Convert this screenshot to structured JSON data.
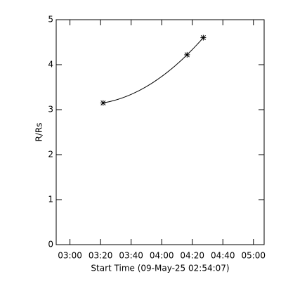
{
  "chart_data": {
    "type": "line",
    "xlabel": "Start Time (09-May-25 02:54:07)",
    "ylabel": "R/Rs",
    "x": [
      201.7,
      256.6,
      267.2
    ],
    "series": [
      {
        "color": "#000000",
        "values": [
          3.15,
          4.22,
          4.6
        ]
      }
    ],
    "xlim": [
      171,
      307
    ],
    "xticks": [
      {
        "value": 180,
        "label": "03:00"
      },
      {
        "value": 200,
        "label": "03:20"
      },
      {
        "value": 220,
        "label": "03:40"
      },
      {
        "value": 240,
        "label": "04:00"
      },
      {
        "value": 260,
        "label": "04:20"
      },
      {
        "value": 280,
        "label": "04:40"
      },
      {
        "value": 300,
        "label": "05:00"
      }
    ],
    "ylim": [
      0,
      5
    ],
    "yticks": [
      0,
      1,
      2,
      3,
      4,
      5
    ]
  }
}
